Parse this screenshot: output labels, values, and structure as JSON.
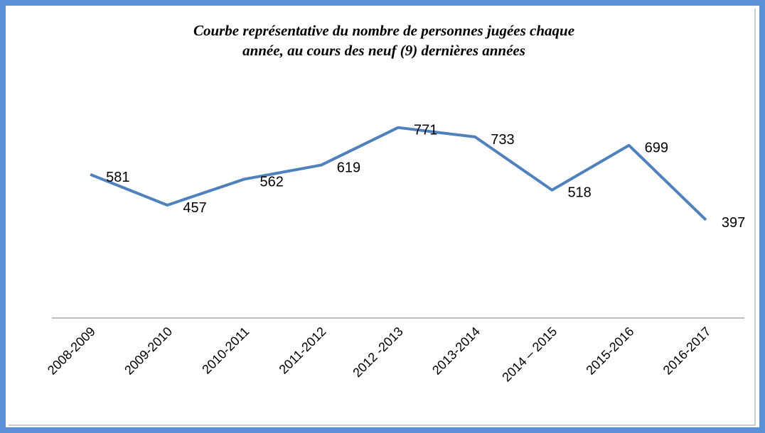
{
  "chart_data": {
    "type": "line",
    "title": [
      "Courbe représentative du nombre de personnes jugées chaque",
      "année, au cours des neuf (9) dernières années"
    ],
    "categories": [
      "2008-2009",
      "2009-2010",
      "2010-2011",
      "2011-2012",
      "2012 -2013",
      "2013-2014",
      "2014 – 2015",
      "2015-2016",
      "2016-2017"
    ],
    "values": [
      581,
      457,
      562,
      619,
      771,
      733,
      518,
      699,
      397
    ],
    "color": "#4f81bd",
    "ylim": [
      0,
      1000
    ]
  }
}
